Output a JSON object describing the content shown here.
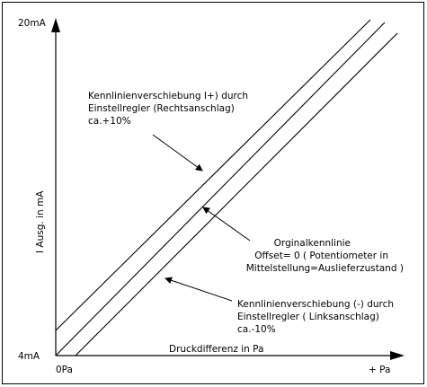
{
  "y_axis": {
    "top_label": "20mA",
    "bottom_label": "4mA",
    "title": "I Ausg. in mA"
  },
  "x_axis": {
    "origin_label": "0Pa",
    "end_label": "+ Pa",
    "title": "Druckdifferenz in Pa"
  },
  "annotations": {
    "plus_shift": {
      "line1": "Kennlinienverschiebung I+) durch",
      "line2": "Einstellregler (Rechtsanschlag)",
      "line3": "ca.+10%"
    },
    "original": {
      "line1": "Orginalkennlinie",
      "line2": "Offset= 0 ( Potentiometer in",
      "line3": "Mittelstellung=Auslieferzustand )"
    },
    "minus_shift": {
      "line1": "Kennlinienverschiebung (-) durch",
      "line2": "Einstellregler ( Linksanschlag)",
      "line3": "ca.-10%"
    }
  }
}
